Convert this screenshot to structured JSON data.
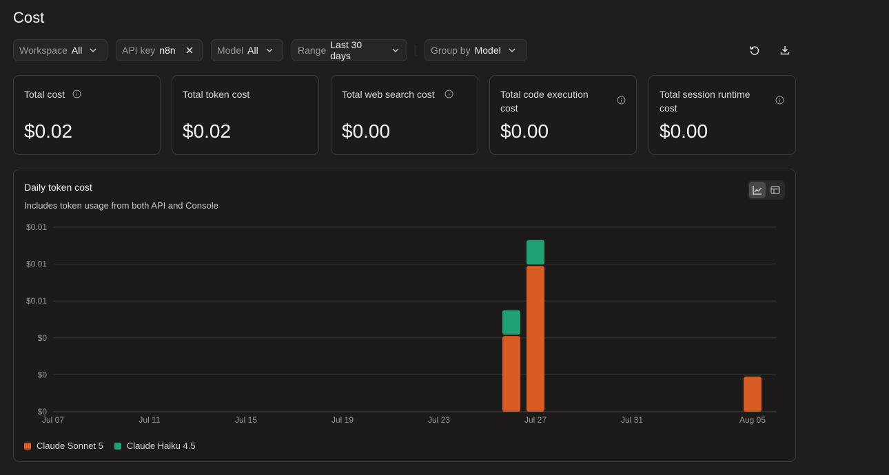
{
  "page": {
    "title": "Cost"
  },
  "filters": {
    "workspace": {
      "label": "Workspace",
      "value": "All"
    },
    "api_key": {
      "label": "API key",
      "value": "n8n"
    },
    "model": {
      "label": "Model",
      "value": "All"
    },
    "range": {
      "label": "Range",
      "value": "Last 30 days"
    },
    "group_by": {
      "label": "Group by",
      "value": "Model"
    }
  },
  "toolbar": {
    "refresh_icon": "refresh-icon",
    "download_icon": "download-icon"
  },
  "cards": [
    {
      "label": "Total cost",
      "value": "$0.02"
    },
    {
      "label": "Total token cost",
      "value": "$0.02"
    },
    {
      "label": "Total web search cost",
      "value": "$0.00"
    },
    {
      "label": "Total code execution cost",
      "value": "$0.00"
    },
    {
      "label": "Total session runtime cost",
      "value": "$0.00"
    }
  ],
  "chart": {
    "title": "Daily token cost",
    "subtitle": "Includes token usage from both API and Console",
    "view_toggle": [
      "line-chart-icon",
      "table-icon"
    ]
  },
  "chart_data": {
    "type": "bar",
    "stacked": true,
    "x_ticks": [
      "Jul 07",
      "Jul 11",
      "Jul 15",
      "Jul 19",
      "Jul 23",
      "Jul 27",
      "Jul 31",
      "Aug 05"
    ],
    "y_tick_labels": [
      "$0",
      "$0",
      "$0",
      "$0.01",
      "$0.01",
      "$0.01"
    ],
    "ylim": [
      0,
      0.01
    ],
    "categories": [
      "Jul 26",
      "Jul 27",
      "Aug 05"
    ],
    "series": [
      {
        "name": "Claude Sonnet 5",
        "color": "#d95b24",
        "values": [
          0.0041,
          0.0079,
          0.0019
        ]
      },
      {
        "name": "Claude Haiku 4.5",
        "color": "#1fa173",
        "values": [
          0.0014,
          0.0014,
          0
        ]
      }
    ],
    "grid": true,
    "legend": "bottom-left"
  }
}
